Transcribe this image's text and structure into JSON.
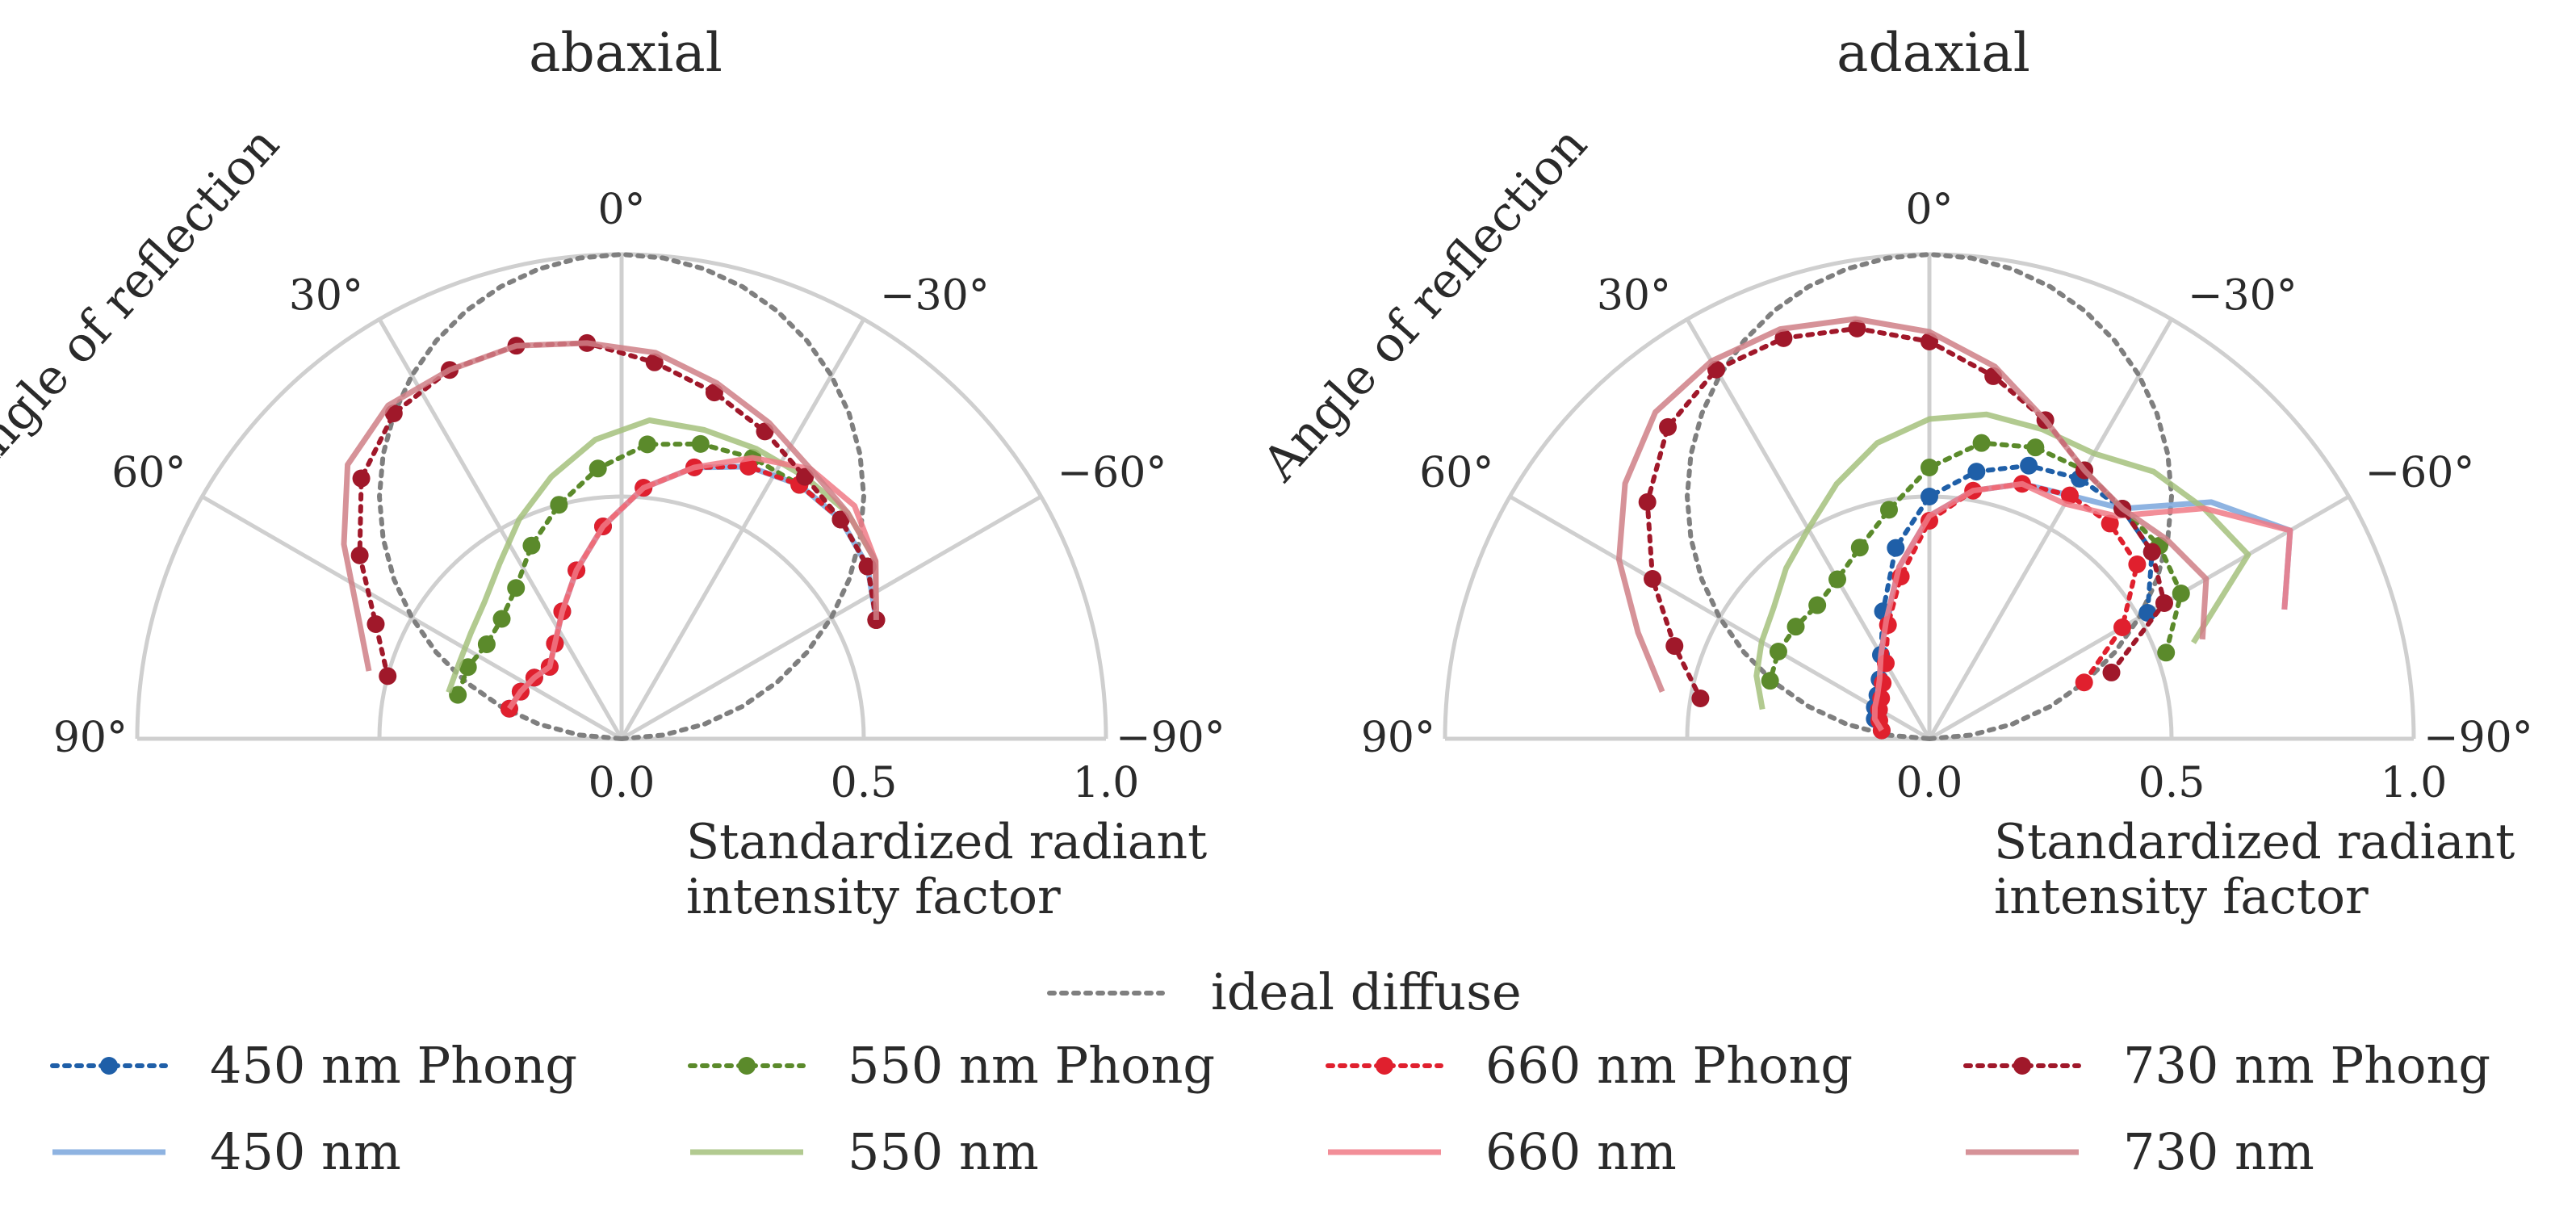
{
  "chart_data": [
    {
      "type": "polar-line",
      "title": "abaxial",
      "angular_label": "Angle of reflection",
      "radial_label_line1": "Standardized radiant",
      "radial_label_line2": "intensity factor",
      "angle_range_deg": [
        -90,
        90
      ],
      "radial_ticks": [
        "0.0",
        "0.5",
        "1.0"
      ],
      "radial_tick_values": [
        0,
        0.5,
        1.0
      ],
      "angle_ticks": [
        {
          "deg": 0,
          "label": "0°"
        },
        {
          "deg": 30,
          "label": "30°"
        },
        {
          "deg": -30,
          "label": "−30°"
        },
        {
          "deg": 60,
          "label": "60°"
        },
        {
          "deg": -60,
          "label": "−60°"
        },
        {
          "deg": 90,
          "label": "90°"
        },
        {
          "deg": -90,
          "label": "−90°"
        }
      ],
      "series": [
        {
          "name": "ideal diffuse",
          "style": "dotted",
          "color": "#7f7f7f",
          "model": "cos",
          "theta": [
            -90,
            90
          ],
          "r": [
            0,
            1
          ]
        },
        {
          "name": "450 nm Phong",
          "style": "dotted-marker",
          "color": "#1f5fa8",
          "theta": [
            -65,
            -55,
            -45,
            -35,
            -25,
            -15,
            -5,
            5,
            15,
            25,
            35,
            45,
            55,
            65,
            75
          ],
          "r": [
            0.58,
            0.62,
            0.64,
            0.64,
            0.62,
            0.58,
            0.52,
            0.44,
            0.36,
            0.29,
            0.24,
            0.21,
            0.22,
            0.23,
            0.24
          ]
        },
        {
          "name": "450 nm",
          "style": "solid",
          "color": "#7aa6dc",
          "theta": [
            -65,
            -55,
            -45,
            -35,
            -25,
            -15,
            -5,
            5,
            15,
            25,
            35,
            45,
            55,
            65,
            75
          ],
          "r": [
            0.58,
            0.62,
            0.64,
            0.64,
            0.62,
            0.58,
            0.52,
            0.44,
            0.36,
            0.29,
            0.24,
            0.21,
            0.22,
            0.23,
            0.24
          ]
        },
        {
          "name": "550 nm Phong",
          "style": "dotted-marker",
          "color": "#5b8a2b",
          "theta": [
            -65,
            -55,
            -45,
            -35,
            -25,
            -15,
            -5,
            5,
            15,
            25,
            35,
            45,
            55,
            65,
            75
          ],
          "r": [
            0.58,
            0.62,
            0.64,
            0.64,
            0.64,
            0.63,
            0.61,
            0.56,
            0.5,
            0.44,
            0.38,
            0.35,
            0.34,
            0.35,
            0.35
          ]
        },
        {
          "name": "550 nm",
          "style": "solid",
          "color": "#a5c17d",
          "theta": [
            -65,
            -55,
            -45,
            -35,
            -25,
            -15,
            -5,
            5,
            15,
            25,
            35,
            45,
            55,
            65,
            75
          ],
          "r": [
            0.58,
            0.64,
            0.66,
            0.66,
            0.66,
            0.66,
            0.66,
            0.62,
            0.56,
            0.5,
            0.44,
            0.4,
            0.38,
            0.37,
            0.37
          ]
        },
        {
          "name": "660 nm Phong",
          "style": "dotted-marker",
          "color": "#e0202e",
          "theta": [
            -65,
            -55,
            -45,
            -35,
            -25,
            -15,
            -5,
            5,
            15,
            25,
            35,
            45,
            55,
            65,
            75
          ],
          "r": [
            0.58,
            0.62,
            0.64,
            0.64,
            0.62,
            0.58,
            0.52,
            0.44,
            0.36,
            0.29,
            0.24,
            0.21,
            0.22,
            0.23,
            0.24
          ]
        },
        {
          "name": "660 nm",
          "style": "solid",
          "color": "#f07a86",
          "theta": [
            -65,
            -55,
            -45,
            -35,
            -25,
            -15,
            -5,
            5,
            15,
            25,
            35,
            45,
            55,
            65,
            75
          ],
          "r": [
            0.58,
            0.64,
            0.68,
            0.68,
            0.64,
            0.58,
            0.52,
            0.44,
            0.36,
            0.29,
            0.24,
            0.21,
            0.22,
            0.23,
            0.24
          ]
        },
        {
          "name": "730 nm Phong",
          "style": "dotted-marker",
          "color": "#a0182a",
          "theta": [
            -65,
            -55,
            -45,
            -35,
            -25,
            -15,
            -5,
            5,
            15,
            25,
            35,
            45,
            55,
            65,
            75
          ],
          "r": [
            0.58,
            0.62,
            0.64,
            0.66,
            0.7,
            0.74,
            0.78,
            0.82,
            0.84,
            0.84,
            0.82,
            0.76,
            0.66,
            0.56,
            0.5
          ]
        },
        {
          "name": "730 nm",
          "style": "solid",
          "color": "#cf7f86",
          "theta": [
            -65,
            -55,
            -45,
            -35,
            -25,
            -15,
            -5,
            5,
            15,
            25,
            35,
            45,
            55,
            65,
            75
          ],
          "r": [
            0.58,
            0.64,
            0.66,
            0.68,
            0.72,
            0.76,
            0.8,
            0.82,
            0.84,
            0.84,
            0.84,
            0.8,
            0.7,
            0.6,
            0.54
          ]
        }
      ]
    },
    {
      "type": "polar-line",
      "title": "adaxial",
      "angular_label": "Angle of reflection",
      "radial_label_line1": "Standardized radiant",
      "radial_label_line2": "intensity factor",
      "angle_range_deg": [
        -90,
        90
      ],
      "radial_ticks": [
        "0.0",
        "0.5",
        "1.0"
      ],
      "radial_tick_values": [
        0,
        0.5,
        1.0
      ],
      "angle_ticks": [
        {
          "deg": 0,
          "label": "0°"
        },
        {
          "deg": 30,
          "label": "30°"
        },
        {
          "deg": -30,
          "label": "−30°"
        },
        {
          "deg": 60,
          "label": "60°"
        },
        {
          "deg": -60,
          "label": "−60°"
        },
        {
          "deg": 90,
          "label": "90°"
        },
        {
          "deg": -90,
          "label": "−90°"
        }
      ],
      "series": [
        {
          "name": "ideal diffuse",
          "style": "dotted",
          "color": "#7f7f7f",
          "model": "cos",
          "theta": [
            -90,
            90
          ],
          "r": [
            0,
            1
          ]
        },
        {
          "name": "450 nm Phong",
          "style": "dotted-marker",
          "color": "#1f5fa8",
          "theta": [
            -60,
            -50,
            -40,
            -30,
            -20,
            -10,
            0,
            10,
            20,
            30,
            40,
            50,
            60,
            70,
            80
          ],
          "r": [
            0.52,
            0.6,
            0.62,
            0.62,
            0.6,
            0.56,
            0.5,
            0.4,
            0.28,
            0.2,
            0.16,
            0.14,
            0.13,
            0.12,
            0.1
          ]
        },
        {
          "name": "450 nm",
          "style": "solid",
          "color": "#7aa6dc",
          "theta": [
            -70,
            -60,
            -50,
            -40,
            -30,
            -20,
            -10,
            0,
            10,
            20,
            30,
            40,
            50,
            60,
            70,
            80
          ],
          "r": [
            0.78,
            0.86,
            0.76,
            0.62,
            0.58,
            0.56,
            0.52,
            0.46,
            0.36,
            0.26,
            0.2,
            0.16,
            0.14,
            0.13,
            0.12,
            0.1
          ]
        },
        {
          "name": "550 nm Phong",
          "style": "dotted-marker",
          "color": "#5b8a2b",
          "theta": [
            -70,
            -60,
            -50,
            -40,
            -30,
            -20,
            -10,
            0,
            10,
            20,
            30,
            40,
            50,
            60,
            70
          ],
          "r": [
            0.52,
            0.6,
            0.62,
            0.62,
            0.64,
            0.64,
            0.62,
            0.56,
            0.48,
            0.42,
            0.38,
            0.36,
            0.36,
            0.36,
            0.35
          ]
        },
        {
          "name": "550 nm",
          "style": "solid",
          "color": "#a5c17d",
          "theta": [
            -70,
            -60,
            -50,
            -40,
            -30,
            -20,
            -10,
            0,
            10,
            20,
            30,
            40,
            50,
            60,
            70,
            80
          ],
          "r": [
            0.58,
            0.76,
            0.74,
            0.72,
            0.68,
            0.68,
            0.68,
            0.66,
            0.62,
            0.56,
            0.5,
            0.46,
            0.42,
            0.4,
            0.38,
            0.35
          ]
        },
        {
          "name": "660 nm Phong",
          "style": "dotted-marker",
          "color": "#e0202e",
          "theta": [
            -70,
            -60,
            -50,
            -40,
            -30,
            -20,
            -10,
            0,
            10,
            20,
            30,
            40,
            50,
            60,
            70,
            80
          ],
          "r": [
            0.34,
            0.46,
            0.56,
            0.58,
            0.58,
            0.56,
            0.52,
            0.45,
            0.34,
            0.25,
            0.18,
            0.15,
            0.13,
            0.12,
            0.11,
            0.1
          ]
        },
        {
          "name": "660 nm",
          "style": "solid",
          "color": "#f07a86",
          "theta": [
            -70,
            -60,
            -50,
            -40,
            -30,
            -20,
            -10,
            0,
            10,
            20,
            30,
            40,
            50,
            60,
            70,
            80
          ],
          "r": [
            0.78,
            0.86,
            0.74,
            0.6,
            0.56,
            0.56,
            0.52,
            0.46,
            0.36,
            0.26,
            0.2,
            0.16,
            0.14,
            0.13,
            0.12,
            0.1
          ]
        },
        {
          "name": "730 nm Phong",
          "style": "dotted-marker",
          "color": "#a0182a",
          "theta": [
            -70,
            -60,
            -50,
            -40,
            -30,
            -20,
            -10,
            0,
            10,
            20,
            30,
            40,
            50,
            60,
            70,
            80
          ],
          "r": [
            0.4,
            0.56,
            0.6,
            0.62,
            0.64,
            0.7,
            0.76,
            0.82,
            0.86,
            0.88,
            0.88,
            0.84,
            0.76,
            0.66,
            0.56,
            0.48
          ]
        },
        {
          "name": "730 nm",
          "style": "solid",
          "color": "#cf7f86",
          "theta": [
            -70,
            -60,
            -50,
            -40,
            -30,
            -20,
            -10,
            0,
            10,
            20,
            30,
            40,
            50,
            60,
            70,
            80
          ],
          "r": [
            0.6,
            0.66,
            0.64,
            0.62,
            0.64,
            0.7,
            0.78,
            0.84,
            0.88,
            0.9,
            0.9,
            0.88,
            0.82,
            0.74,
            0.64,
            0.56
          ]
        }
      ]
    }
  ],
  "legend": {
    "ideal": "ideal diffuse",
    "items": [
      {
        "label": "450 nm Phong",
        "color": "#1f5fa8",
        "style": "dotted-marker"
      },
      {
        "label": "550 nm Phong",
        "color": "#5b8a2b",
        "style": "dotted-marker"
      },
      {
        "label": "660 nm Phong",
        "color": "#e0202e",
        "style": "dotted-marker"
      },
      {
        "label": "730 nm Phong",
        "color": "#a0182a",
        "style": "dotted-marker"
      },
      {
        "label": "450 nm",
        "color": "#7aa6dc",
        "style": "solid"
      },
      {
        "label": "550 nm",
        "color": "#a5c17d",
        "style": "solid"
      },
      {
        "label": "660 nm",
        "color": "#f07a86",
        "style": "solid"
      },
      {
        "label": "730 nm",
        "color": "#cf7f86",
        "style": "solid"
      }
    ]
  }
}
